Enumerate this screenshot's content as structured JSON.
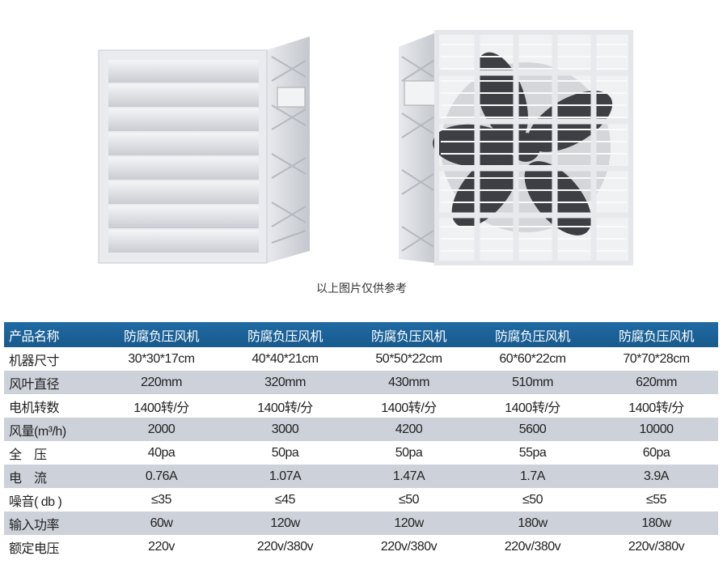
{
  "caption": "以上图片仅供参考",
  "colors": {
    "header_bg": "#1c6198",
    "stripe_bg": "#cdd1d9",
    "header_text": "#ffffff"
  },
  "table": {
    "header": {
      "label": "产品名称",
      "values": [
        "防腐负压风机",
        "防腐负压风机",
        "防腐负压风机",
        "防腐负压风机",
        "防腐负压风机"
      ]
    },
    "rows": [
      {
        "label": "机器尺寸",
        "values": [
          "30*30*17cm",
          "40*40*21cm",
          "50*50*22cm",
          "60*60*22cm",
          "70*70*28cm"
        ]
      },
      {
        "label": "风叶直径",
        "values": [
          "220mm",
          "320mm",
          "430mm",
          "510mm",
          "620mm"
        ]
      },
      {
        "label": "电机转数",
        "values": [
          "1400转/分",
          "1400转/分",
          "1400转/分",
          "1400转/分",
          "1400转/分"
        ]
      },
      {
        "label": "风量(m³/h)",
        "values": [
          "2000",
          "3000",
          "4200",
          "5600",
          "10000"
        ]
      },
      {
        "label": "全　压",
        "values": [
          "40pa",
          "50pa",
          "50pa",
          "55pa",
          "60pa"
        ]
      },
      {
        "label": "电　流",
        "values": [
          "0.76A",
          "1.07A",
          "1.47A",
          "1.7A",
          "3.9A"
        ]
      },
      {
        "label": "噪音( db )",
        "values": [
          "≤35",
          "≤45",
          "≤50",
          "≤50",
          "≤55"
        ]
      },
      {
        "label": "输入功率",
        "values": [
          "60w",
          "120w",
          "120w",
          "180w",
          "180w"
        ]
      },
      {
        "label": "额定电压",
        "values": [
          "220v",
          "220v/380v",
          "220v/380v",
          "220v/380v",
          "220v/380v"
        ]
      }
    ]
  }
}
